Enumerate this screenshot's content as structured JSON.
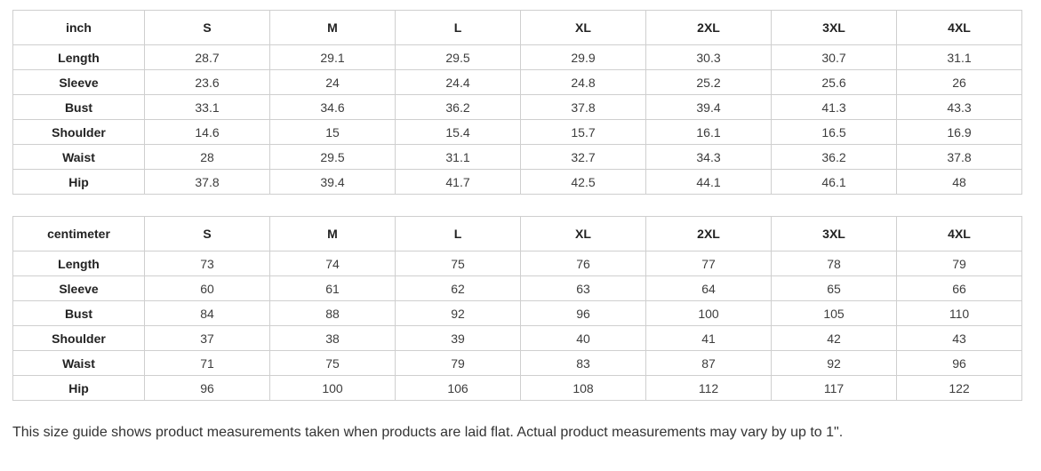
{
  "colors": {
    "background": "#ffffff",
    "table_border": "#cfcfcf",
    "header_text": "#222222",
    "value_text": "#3d3d3d",
    "disclaimer_text": "#333333"
  },
  "tables": [
    {
      "unit": "inch",
      "header": [
        "inch",
        "S",
        "M",
        "L",
        "XL",
        "2XL",
        "3XL",
        "4XL"
      ],
      "rows": [
        {
          "label": "Length",
          "values": [
            "28.7",
            "29.1",
            "29.5",
            "29.9",
            "30.3",
            "30.7",
            "31.1"
          ]
        },
        {
          "label": "Sleeve",
          "values": [
            "23.6",
            "24",
            "24.4",
            "24.8",
            "25.2",
            "25.6",
            "26"
          ]
        },
        {
          "label": "Bust",
          "values": [
            "33.1",
            "34.6",
            "36.2",
            "37.8",
            "39.4",
            "41.3",
            "43.3"
          ]
        },
        {
          "label": "Shoulder",
          "values": [
            "14.6",
            "15",
            "15.4",
            "15.7",
            "16.1",
            "16.5",
            "16.9"
          ]
        },
        {
          "label": "Waist",
          "values": [
            "28",
            "29.5",
            "31.1",
            "32.7",
            "34.3",
            "36.2",
            "37.8"
          ]
        },
        {
          "label": "Hip",
          "values": [
            "37.8",
            "39.4",
            "41.7",
            "42.5",
            "44.1",
            "46.1",
            "48"
          ]
        }
      ]
    },
    {
      "unit": "centimeter",
      "header": [
        "centimeter",
        "S",
        "M",
        "L",
        "XL",
        "2XL",
        "3XL",
        "4XL"
      ],
      "rows": [
        {
          "label": "Length",
          "values": [
            "73",
            "74",
            "75",
            "76",
            "77",
            "78",
            "79"
          ]
        },
        {
          "label": "Sleeve",
          "values": [
            "60",
            "61",
            "62",
            "63",
            "64",
            "65",
            "66"
          ]
        },
        {
          "label": "Bust",
          "values": [
            "84",
            "88",
            "92",
            "96",
            "100",
            "105",
            "110"
          ]
        },
        {
          "label": "Shoulder",
          "values": [
            "37",
            "38",
            "39",
            "40",
            "41",
            "42",
            "43"
          ]
        },
        {
          "label": "Waist",
          "values": [
            "71",
            "75",
            "79",
            "83",
            "87",
            "92",
            "96"
          ]
        },
        {
          "label": "Hip",
          "values": [
            "96",
            "100",
            "106",
            "108",
            "112",
            "117",
            "122"
          ]
        }
      ]
    }
  ],
  "footer": {
    "disclaimer": "This size guide shows product measurements taken when products are laid flat. Actual product measurements may vary by up to 1\"."
  }
}
